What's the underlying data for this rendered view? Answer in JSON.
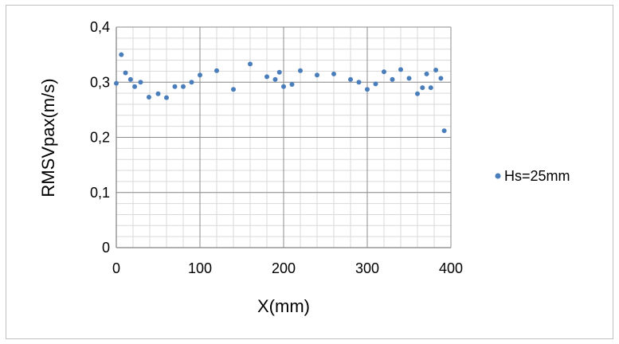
{
  "chart_data": {
    "type": "scatter",
    "title": "",
    "xlabel": "X(mm)",
    "ylabel": "RMSVpax(m/s)",
    "xlim": [
      0,
      400
    ],
    "ylim": [
      0,
      0.4
    ],
    "x_ticks": [
      0,
      100,
      200,
      300,
      400
    ],
    "y_ticks": [
      0,
      0.1,
      0.2,
      0.3,
      0.4
    ],
    "x_tick_labels": [
      "0",
      "100",
      "200",
      "300",
      "400"
    ],
    "y_tick_labels": [
      "0",
      "0,1",
      "0,2",
      "0,3",
      "0,4"
    ],
    "grid": true,
    "minor_grid": true,
    "legend_position": "right",
    "marker_color": "#4a7ebb",
    "series": [
      {
        "name": "Hs=25mm",
        "x": [
          0,
          6,
          11,
          17,
          22,
          29,
          39,
          50,
          60,
          70,
          80,
          90,
          100,
          120,
          140,
          160,
          180,
          190,
          195,
          200,
          210,
          220,
          240,
          260,
          280,
          290,
          300,
          310,
          320,
          330,
          340,
          350,
          360,
          366,
          371,
          376,
          382,
          388,
          392
        ],
        "y": [
          0.298,
          0.35,
          0.317,
          0.305,
          0.292,
          0.3,
          0.273,
          0.279,
          0.272,
          0.292,
          0.292,
          0.3,
          0.313,
          0.321,
          0.287,
          0.333,
          0.31,
          0.305,
          0.318,
          0.292,
          0.296,
          0.321,
          0.313,
          0.315,
          0.305,
          0.3,
          0.287,
          0.297,
          0.319,
          0.305,
          0.323,
          0.307,
          0.279,
          0.29,
          0.315,
          0.29,
          0.322,
          0.307,
          0.212
        ]
      }
    ]
  }
}
